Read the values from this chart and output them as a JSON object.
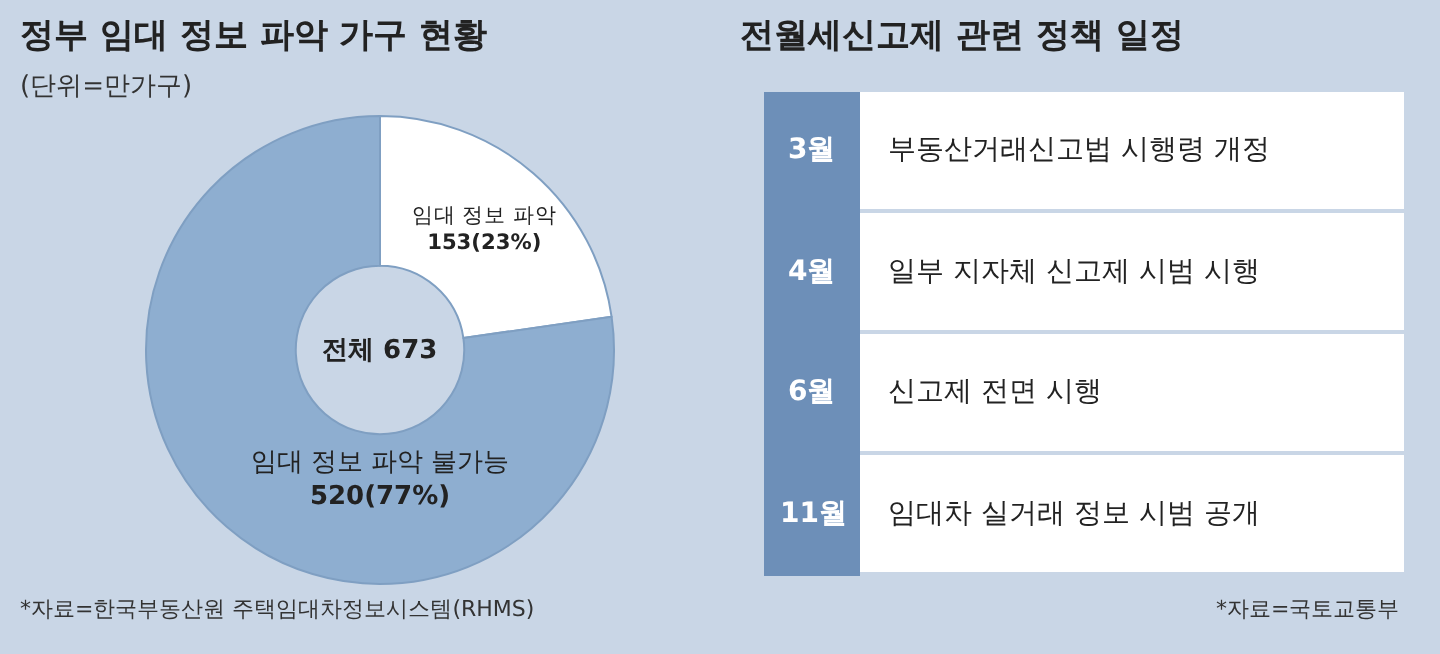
{
  "chart_data": [
    {
      "type": "donut",
      "title": "정부 임대 정보 파악 가구 현황",
      "subtitle": "(단위=만가구)",
      "categories": [
        "임대 정보 파악",
        "임대 정보 파악 불가능"
      ],
      "values": [
        153,
        520
      ],
      "value_labels": [
        "153(23%)",
        "520(77%)"
      ],
      "colors": [
        "#ffffff",
        "#8eaed0"
      ],
      "annotations": [
        "전체 673",
        "*자료=한국부동산원 주택임대차정보시스템(RHMS)"
      ]
    },
    {
      "type": "other",
      "title": "전월세신고제 관련 정책 일정",
      "categories": [
        "3월",
        "4월",
        "6월",
        "11월"
      ],
      "annotations": [
        "부동산거래신고법 시행령 개정",
        "일부 지자체 신고제 시범 시행",
        "신고제 전면 시행",
        "임대차 실거래 정보 시범 공개",
        "*자료=국토교통부"
      ]
    }
  ]
}
